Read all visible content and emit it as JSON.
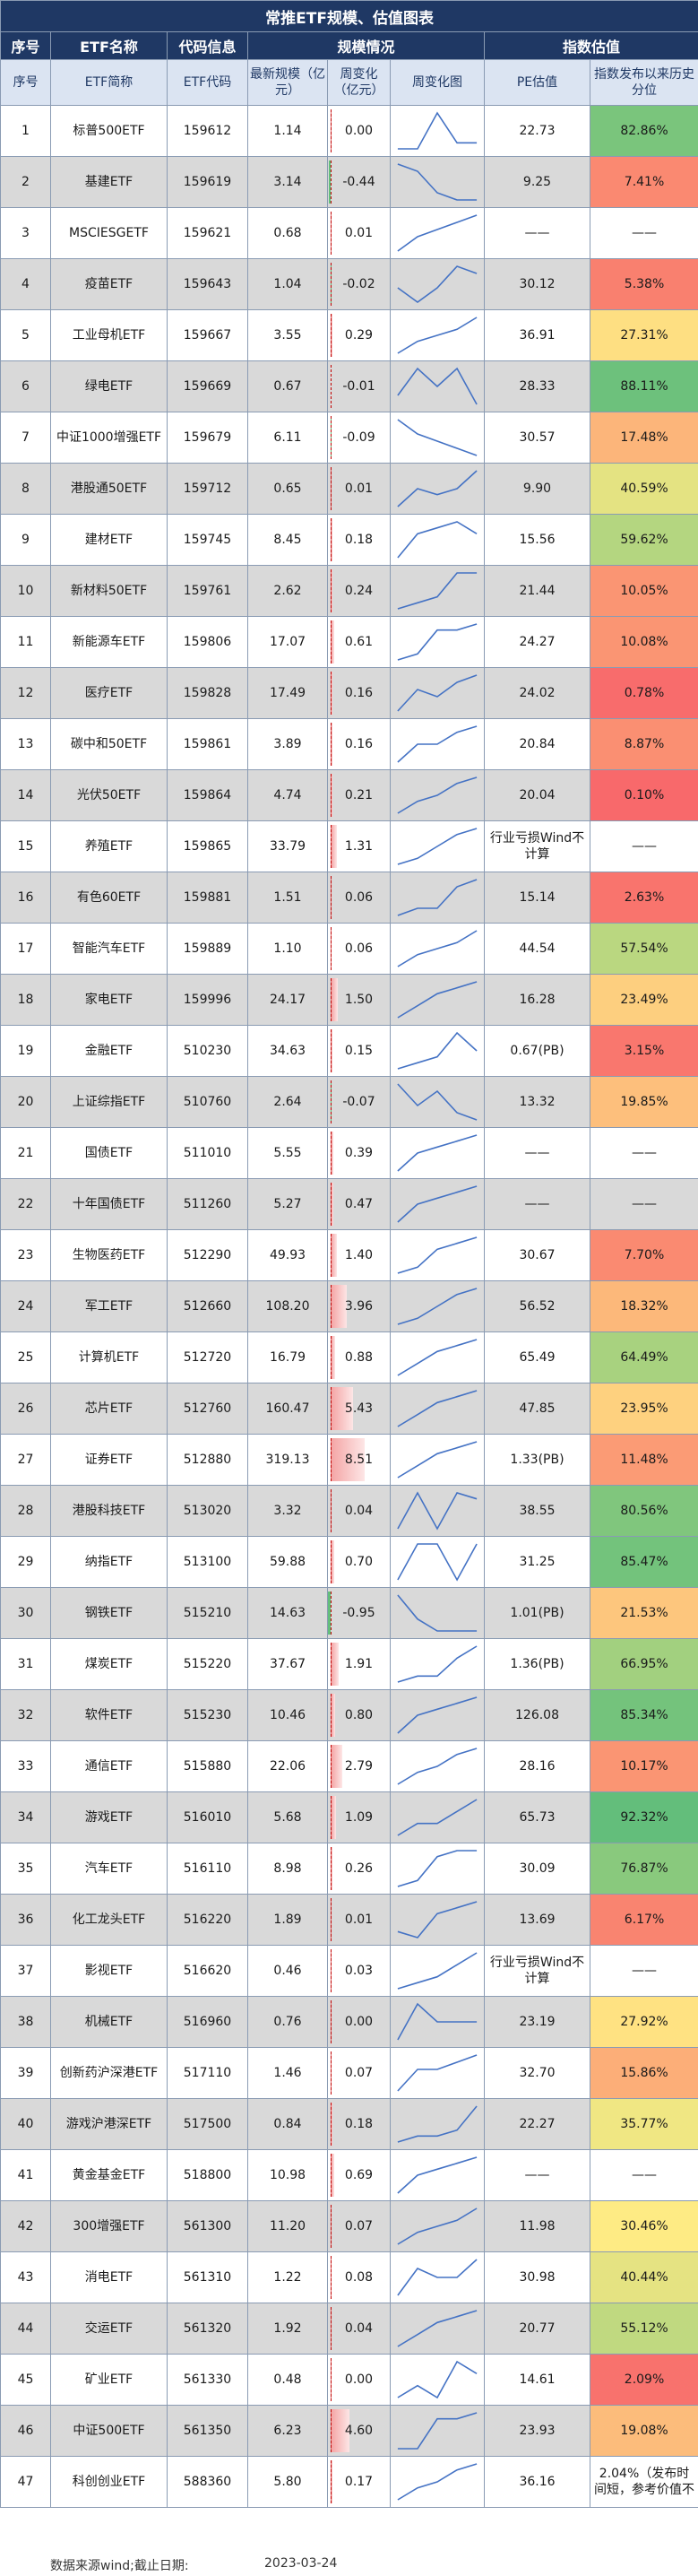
{
  "title": "常推ETF规模、估值图表",
  "group_headers": [
    "序号",
    "ETF名称",
    "代码信息",
    "规模情况",
    "指数估值"
  ],
  "columns": [
    "序号",
    "ETF简称",
    "ETF代码",
    "最新规模（亿元）",
    "周变化（亿元）",
    "周变化图",
    "PE估值",
    "指数发布以来历史分位"
  ],
  "colors": {
    "header_bg": "#1f3864",
    "subheader_bg": "#dbe4f2",
    "shade_row": "#d9d9d9",
    "pos_bar": "#f4a6a6",
    "neg_bar": "#63be7b",
    "pct_low": "#f8696b",
    "pct_mid": "#ffeb84",
    "pct_high": "#63be7b"
  },
  "chart_data": {
    "type": "table",
    "rows": [
      {
        "no": "1",
        "name": "标普500ETF",
        "code": "159612",
        "size": "1.14",
        "chg": "0.00",
        "pe": "22.73",
        "pct": "82.86%",
        "pv": 82.86,
        "sp": [
          2,
          2,
          8,
          3,
          3
        ]
      },
      {
        "no": "2",
        "name": "基建ETF",
        "code": "159619",
        "size": "3.14",
        "chg": "-0.44",
        "pe": "9.25",
        "pct": "7.41%",
        "pv": 7.41,
        "sp": [
          8,
          7,
          4,
          3,
          3
        ]
      },
      {
        "no": "3",
        "name": "MSCIESGETF",
        "code": "159621",
        "size": "0.68",
        "chg": "0.01",
        "pe": "——",
        "pct": "——",
        "pv": null,
        "sp": [
          2,
          4,
          5,
          6,
          7
        ]
      },
      {
        "no": "4",
        "name": "疫苗ETF",
        "code": "159643",
        "size": "1.04",
        "chg": "-0.02",
        "pe": "30.12",
        "pct": "5.38%",
        "pv": 5.38,
        "sp": [
          5,
          3,
          5,
          8,
          7
        ]
      },
      {
        "no": "5",
        "name": "工业母机ETF",
        "code": "159667",
        "size": "3.55",
        "chg": "0.29",
        "pe": "36.91",
        "pct": "27.31%",
        "pv": 27.31,
        "sp": [
          2,
          4,
          5,
          6,
          8
        ]
      },
      {
        "no": "6",
        "name": "绿电ETF",
        "code": "159669",
        "size": "0.67",
        "chg": "-0.01",
        "pe": "28.33",
        "pct": "88.11%",
        "pv": 88.11,
        "sp": [
          4,
          7,
          5,
          7,
          3
        ]
      },
      {
        "no": "7",
        "name": "中证1000增强ETF",
        "code": "159679",
        "size": "6.11",
        "chg": "-0.09",
        "pe": "30.57",
        "pct": "17.48%",
        "pv": 17.48,
        "sp": [
          8,
          6,
          5,
          4,
          3
        ]
      },
      {
        "no": "8",
        "name": "港股通50ETF",
        "code": "159712",
        "size": "0.65",
        "chg": "0.01",
        "pe": "9.90",
        "pct": "40.59%",
        "pv": 40.59,
        "sp": [
          2,
          5,
          4,
          5,
          8
        ]
      },
      {
        "no": "9",
        "name": "建材ETF",
        "code": "159745",
        "size": "8.45",
        "chg": "0.18",
        "pe": "15.56",
        "pct": "59.62%",
        "pv": 59.62,
        "sp": [
          2,
          6,
          7,
          8,
          6
        ]
      },
      {
        "no": "10",
        "name": "新材料50ETF",
        "code": "159761",
        "size": "2.62",
        "chg": "0.24",
        "pe": "21.44",
        "pct": "10.05%",
        "pv": 10.05,
        "sp": [
          2,
          3,
          4,
          8,
          8
        ]
      },
      {
        "no": "11",
        "name": "新能源车ETF",
        "code": "159806",
        "size": "17.07",
        "chg": "0.61",
        "pe": "24.27",
        "pct": "10.08%",
        "pv": 10.08,
        "sp": [
          2,
          3,
          7,
          7,
          8
        ]
      },
      {
        "no": "12",
        "name": "医疗ETF",
        "code": "159828",
        "size": "17.49",
        "chg": "0.16",
        "pe": "24.02",
        "pct": "0.78%",
        "pv": 0.78,
        "sp": [
          2,
          5,
          4,
          6,
          7
        ]
      },
      {
        "no": "13",
        "name": "碳中和50ETF",
        "code": "159861",
        "size": "3.89",
        "chg": "0.16",
        "pe": "20.84",
        "pct": "8.87%",
        "pv": 8.87,
        "sp": [
          2,
          5,
          5,
          7,
          8
        ]
      },
      {
        "no": "14",
        "name": "光伏50ETF",
        "code": "159864",
        "size": "4.74",
        "chg": "0.21",
        "pe": "20.04",
        "pct": "0.10%",
        "pv": 0.1,
        "sp": [
          2,
          4,
          5,
          7,
          8
        ]
      },
      {
        "no": "15",
        "name": "养殖ETF",
        "code": "159865",
        "size": "33.79",
        "chg": "1.31",
        "pe": "行业亏损Wind不计算",
        "pct": "——",
        "pv": null,
        "sp": [
          2,
          3,
          5,
          7,
          8
        ]
      },
      {
        "no": "16",
        "name": "有色60ETF",
        "code": "159881",
        "size": "1.51",
        "chg": "0.06",
        "pe": "15.14",
        "pct": "2.63%",
        "pv": 2.63,
        "sp": [
          3,
          4,
          4,
          7,
          8
        ]
      },
      {
        "no": "17",
        "name": "智能汽车ETF",
        "code": "159889",
        "size": "1.10",
        "chg": "0.06",
        "pe": "44.54",
        "pct": "57.54%",
        "pv": 57.54,
        "sp": [
          2,
          4,
          5,
          6,
          8
        ]
      },
      {
        "no": "18",
        "name": "家电ETF",
        "code": "159996",
        "size": "24.17",
        "chg": "1.50",
        "pe": "16.28",
        "pct": "23.49%",
        "pv": 23.49,
        "sp": [
          2,
          4,
          6,
          7,
          8
        ]
      },
      {
        "no": "19",
        "name": "金融ETF",
        "code": "510230",
        "size": "34.63",
        "chg": "0.15",
        "pe": "0.67(PB)",
        "pct": "3.15%",
        "pv": 3.15,
        "sp": [
          2,
          3,
          4,
          8,
          5
        ]
      },
      {
        "no": "20",
        "name": "上证综指ETF",
        "code": "510760",
        "size": "2.64",
        "chg": "-0.07",
        "pe": "13.32",
        "pct": "19.85%",
        "pv": 19.85,
        "sp": [
          8,
          5,
          7,
          4,
          3
        ]
      },
      {
        "no": "21",
        "name": "国债ETF",
        "code": "511010",
        "size": "5.55",
        "chg": "0.39",
        "pe": "——",
        "pct": "——",
        "pv": null,
        "sp": [
          2,
          5,
          6,
          7,
          8
        ]
      },
      {
        "no": "22",
        "name": "十年国债ETF",
        "code": "511260",
        "size": "5.27",
        "chg": "0.47",
        "pe": "——",
        "pct": "——",
        "pv": null,
        "sp": [
          2,
          5,
          6,
          7,
          8
        ]
      },
      {
        "no": "23",
        "name": "生物医药ETF",
        "code": "512290",
        "size": "49.93",
        "chg": "1.40",
        "pe": "30.67",
        "pct": "7.70%",
        "pv": 7.7,
        "sp": [
          2,
          3,
          6,
          7,
          8
        ]
      },
      {
        "no": "24",
        "name": "军工ETF",
        "code": "512660",
        "size": "108.20",
        "chg": "3.96",
        "pe": "56.52",
        "pct": "18.32%",
        "pv": 18.32,
        "sp": [
          2,
          3,
          5,
          7,
          8
        ]
      },
      {
        "no": "25",
        "name": "计算机ETF",
        "code": "512720",
        "size": "16.79",
        "chg": "0.88",
        "pe": "65.49",
        "pct": "64.49%",
        "pv": 64.49,
        "sp": [
          2,
          4,
          6,
          7,
          8
        ]
      },
      {
        "no": "26",
        "name": "芯片ETF",
        "code": "512760",
        "size": "160.47",
        "chg": "5.43",
        "pe": "47.85",
        "pct": "23.95%",
        "pv": 23.95,
        "sp": [
          2,
          4,
          6,
          7,
          8
        ]
      },
      {
        "no": "27",
        "name": "证券ETF",
        "code": "512880",
        "size": "319.13",
        "chg": "8.51",
        "pe": "1.33(PB)",
        "pct": "11.48%",
        "pv": 11.48,
        "sp": [
          2,
          4,
          6,
          7,
          8
        ]
      },
      {
        "no": "28",
        "name": "港股科技ETF",
        "code": "513020",
        "size": "3.32",
        "chg": "0.04",
        "pe": "38.55",
        "pct": "80.56%",
        "pv": 80.56,
        "sp": [
          2,
          8,
          2,
          8,
          7
        ]
      },
      {
        "no": "29",
        "name": "纳指ETF",
        "code": "513100",
        "size": "59.88",
        "chg": "0.70",
        "pe": "31.25",
        "pct": "85.47%",
        "pv": 85.47,
        "sp": [
          2,
          7,
          7,
          2,
          7
        ]
      },
      {
        "no": "30",
        "name": "钢铁ETF",
        "code": "515210",
        "size": "14.63",
        "chg": "-0.95",
        "pe": "1.01(PB)",
        "pct": "21.53%",
        "pv": 21.53,
        "sp": [
          8,
          4,
          2,
          2,
          2
        ]
      },
      {
        "no": "31",
        "name": "煤炭ETF",
        "code": "515220",
        "size": "37.67",
        "chg": "1.91",
        "pe": "1.36(PB)",
        "pct": "66.95%",
        "pv": 66.95,
        "sp": [
          2,
          3,
          3,
          6,
          8
        ]
      },
      {
        "no": "32",
        "name": "软件ETF",
        "code": "515230",
        "size": "10.46",
        "chg": "0.80",
        "pe": "126.08",
        "pct": "85.34%",
        "pv": 85.34,
        "sp": [
          2,
          5,
          6,
          7,
          8
        ]
      },
      {
        "no": "33",
        "name": "通信ETF",
        "code": "515880",
        "size": "22.06",
        "chg": "2.79",
        "pe": "28.16",
        "pct": "10.17%",
        "pv": 10.17,
        "sp": [
          2,
          4,
          5,
          7,
          8
        ]
      },
      {
        "no": "34",
        "name": "游戏ETF",
        "code": "516010",
        "size": "5.68",
        "chg": "1.09",
        "pe": "65.73",
        "pct": "92.32%",
        "pv": 92.32,
        "sp": [
          2,
          4,
          4,
          6,
          8
        ]
      },
      {
        "no": "35",
        "name": "汽车ETF",
        "code": "516110",
        "size": "8.98",
        "chg": "0.26",
        "pe": "30.09",
        "pct": "76.87%",
        "pv": 76.87,
        "sp": [
          2,
          3,
          7,
          8,
          8
        ]
      },
      {
        "no": "36",
        "name": "化工龙头ETF",
        "code": "516220",
        "size": "1.89",
        "chg": "0.01",
        "pe": "13.69",
        "pct": "6.17%",
        "pv": 6.17,
        "sp": [
          3,
          2,
          6,
          7,
          8
        ]
      },
      {
        "no": "37",
        "name": "影视ETF",
        "code": "516620",
        "size": "0.46",
        "chg": "0.03",
        "pe": "行业亏损Wind不计算",
        "pct": "——",
        "pv": null,
        "sp": [
          2,
          3,
          4,
          6,
          8
        ]
      },
      {
        "no": "38",
        "name": "机械ETF",
        "code": "516960",
        "size": "0.76",
        "chg": "0.00",
        "pe": "23.19",
        "pct": "27.92%",
        "pv": 27.92,
        "sp": [
          2,
          8,
          5,
          5,
          5
        ]
      },
      {
        "no": "39",
        "name": "创新药沪深港ETF",
        "code": "517110",
        "size": "1.46",
        "chg": "0.07",
        "pe": "32.70",
        "pct": "15.86%",
        "pv": 15.86,
        "sp": [
          3,
          6,
          6,
          7,
          8
        ]
      },
      {
        "no": "40",
        "name": "游戏沪港深ETF",
        "code": "517500",
        "size": "0.84",
        "chg": "0.18",
        "pe": "22.27",
        "pct": "35.77%",
        "pv": 35.77,
        "sp": [
          2,
          3,
          3,
          4,
          8
        ]
      },
      {
        "no": "41",
        "name": "黄金基金ETF",
        "code": "518800",
        "size": "10.98",
        "chg": "0.69",
        "pe": "——",
        "pct": "——",
        "pv": null,
        "sp": [
          2,
          5,
          6,
          7,
          8
        ]
      },
      {
        "no": "42",
        "name": "300增强ETF",
        "code": "561300",
        "size": "11.20",
        "chg": "0.07",
        "pe": "11.98",
        "pct": "30.46%",
        "pv": 30.46,
        "sp": [
          2,
          4,
          5,
          6,
          8
        ]
      },
      {
        "no": "43",
        "name": "消电ETF",
        "code": "561310",
        "size": "1.22",
        "chg": "0.08",
        "pe": "30.98",
        "pct": "40.44%",
        "pv": 40.44,
        "sp": [
          2,
          5,
          4,
          4,
          6
        ]
      },
      {
        "no": "44",
        "name": "交运ETF",
        "code": "561320",
        "size": "1.92",
        "chg": "0.04",
        "pe": "20.77",
        "pct": "55.12%",
        "pv": 55.12,
        "sp": [
          2,
          4,
          6,
          7,
          8
        ]
      },
      {
        "no": "45",
        "name": "矿业ETF",
        "code": "561330",
        "size": "0.48",
        "chg": "0.00",
        "pe": "14.61",
        "pct": "2.09%",
        "pv": 2.09,
        "sp": [
          5,
          6,
          5,
          8,
          7
        ]
      },
      {
        "no": "46",
        "name": "中证500ETF",
        "code": "561350",
        "size": "6.23",
        "chg": "4.60",
        "pe": "23.93",
        "pct": "19.08%",
        "pv": 19.08,
        "sp": [
          2,
          2,
          7,
          7,
          8
        ]
      },
      {
        "no": "47",
        "name": "科创创业ETF",
        "code": "588360",
        "size": "5.80",
        "chg": "0.17",
        "pe": "36.16",
        "pct": "2.04%（发布时间短，参考价值不",
        "pv": null,
        "sp": [
          2,
          4,
          5,
          7,
          8
        ]
      }
    ]
  },
  "footer": {
    "source": "数据来源wind;截止日期:",
    "date": "2023-03-24"
  }
}
